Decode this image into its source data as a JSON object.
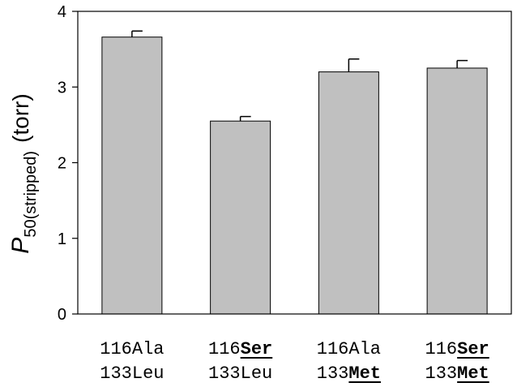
{
  "chart_data": {
    "type": "bar",
    "categories": [
      {
        "line1": [
          {
            "text": "116Ala",
            "bold": false
          }
        ],
        "line2": [
          {
            "text": "133Leu",
            "bold": false
          }
        ]
      },
      {
        "line1": [
          {
            "text": "116",
            "bold": false
          },
          {
            "text": "Ser",
            "bold": true
          }
        ],
        "line2": [
          {
            "text": "133Leu",
            "bold": false
          }
        ]
      },
      {
        "line1": [
          {
            "text": "116Ala",
            "bold": false
          }
        ],
        "line2": [
          {
            "text": "133",
            "bold": false
          },
          {
            "text": "Met",
            "bold": true
          }
        ]
      },
      {
        "line1": [
          {
            "text": "116",
            "bold": false
          },
          {
            "text": "Ser",
            "bold": true
          }
        ],
        "line2": [
          {
            "text": "133",
            "bold": false
          },
          {
            "text": "Met",
            "bold": true
          }
        ]
      }
    ],
    "values": [
      3.66,
      2.55,
      3.2,
      3.25
    ],
    "errors": [
      0.08,
      0.06,
      0.17,
      0.1
    ],
    "ylim": [
      0,
      4
    ],
    "yticks": [
      "0",
      "1",
      "2",
      "3",
      "4"
    ],
    "ylabel": {
      "main": "P",
      "sub": "50(stripped)",
      "unit": "(torr)"
    },
    "bar_color": "#c0c0c0",
    "grid": false
  }
}
